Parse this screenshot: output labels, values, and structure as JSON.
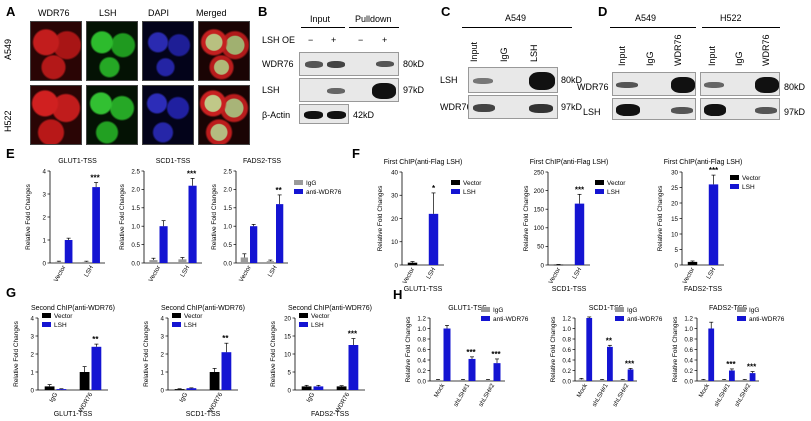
{
  "panels": {
    "A": {
      "label": "A",
      "columns": [
        "WDR76",
        "LSH",
        "DAPI",
        "Merged"
      ],
      "rows": [
        "A549",
        "H522"
      ]
    },
    "B": {
      "label": "B",
      "headers": [
        "Input",
        "Pulldown"
      ],
      "treatment": "LSH OE",
      "signs": [
        "−",
        "+",
        "−",
        "+"
      ],
      "rows": [
        "WDR76",
        "LSH",
        "β-Actin"
      ],
      "sizes": [
        "80kD",
        "97kD",
        "42kD"
      ]
    },
    "C": {
      "label": "C",
      "cell": "A549",
      "lanes": [
        "Input",
        "IgG",
        "LSH"
      ],
      "rows": [
        "LSH",
        "WDR76"
      ],
      "sizes": [
        "80kD",
        "97kD"
      ]
    },
    "D": {
      "label": "D",
      "cells": [
        "A549",
        "H522"
      ],
      "lanes": [
        "Input",
        "IgG",
        "WDR76",
        "Input",
        "IgG",
        "WDR76"
      ],
      "rows": [
        "WDR76",
        "LSH"
      ],
      "sizes": [
        "80kD",
        "97kD"
      ]
    },
    "E": {
      "label": "E"
    },
    "F": {
      "label": "F"
    },
    "G": {
      "label": "G"
    },
    "H": {
      "label": "H"
    }
  },
  "colors": {
    "blue": "#1414d2",
    "gray": "#9a9a9a",
    "black": "#000000"
  },
  "chart_data": [
    {
      "id": "E1",
      "panel": "E",
      "type": "bar",
      "title": "GLUT1-TSS",
      "ylabel": "Relative Fold Changes",
      "categories": [
        "Vector",
        "LSH"
      ],
      "ylim": [
        0,
        4
      ],
      "yticks": [
        "0",
        "1",
        "2",
        "3",
        "4"
      ],
      "series": [
        {
          "name": "IgG",
          "color": "gray",
          "values": [
            0.05,
            0.05
          ],
          "errors": [
            0.03,
            0.03
          ]
        },
        {
          "name": "anti-WDR76",
          "color": "blue",
          "values": [
            1.0,
            3.3
          ],
          "errors": [
            0.08,
            0.2
          ]
        }
      ],
      "sig": [
        "",
        "***"
      ]
    },
    {
      "id": "E2",
      "panel": "E",
      "type": "bar",
      "title": "SCD1-TSS",
      "ylabel": "Relative Fold Changes",
      "categories": [
        "Vector",
        "LSH"
      ],
      "ylim": [
        0,
        2.5
      ],
      "yticks": [
        "0.0",
        "0.5",
        "1.0",
        "1.5",
        "2.0",
        "2.5"
      ],
      "series": [
        {
          "name": "IgG",
          "color": "gray",
          "values": [
            0.08,
            0.1
          ],
          "errors": [
            0.05,
            0.05
          ]
        },
        {
          "name": "anti-WDR76",
          "color": "blue",
          "values": [
            1.0,
            2.1
          ],
          "errors": [
            0.15,
            0.2
          ]
        }
      ],
      "sig": [
        "",
        "***"
      ]
    },
    {
      "id": "E3",
      "panel": "E",
      "type": "bar",
      "title": "FADS2-TSS",
      "ylabel": "Relative Fold Changes",
      "categories": [
        "Vector",
        "LSH"
      ],
      "ylim": [
        0,
        2.5
      ],
      "yticks": [
        "0.0",
        "0.5",
        "1.0",
        "1.5",
        "2.0",
        "2.5"
      ],
      "series": [
        {
          "name": "IgG",
          "color": "gray",
          "values": [
            0.15,
            0.05
          ],
          "errors": [
            0.1,
            0.03
          ]
        },
        {
          "name": "anti-WDR76",
          "color": "blue",
          "values": [
            1.0,
            1.6
          ],
          "errors": [
            0.05,
            0.25
          ]
        }
      ],
      "sig": [
        "",
        "**"
      ],
      "legend": [
        "IgG",
        "anti-WDR76"
      ]
    },
    {
      "id": "F1",
      "panel": "F",
      "type": "bar",
      "title": "First ChIP(anti-Flag LSH)",
      "ylabel": "Relative Fold Changes",
      "xlabel": "GLUT1-TSS",
      "categories": [
        "Vector",
        "LSH"
      ],
      "ylim": [
        0,
        40
      ],
      "yticks": [
        "0",
        "10",
        "20",
        "30",
        "40"
      ],
      "series": [
        {
          "name": "Values",
          "colors": [
            "black",
            "blue"
          ],
          "values": [
            1,
            22
          ],
          "errors": [
            0.5,
            9
          ]
        }
      ],
      "sig": [
        "",
        "*"
      ],
      "legend": [
        "Vector",
        "LSH"
      ]
    },
    {
      "id": "F2",
      "panel": "F",
      "type": "bar",
      "title": "First ChIP(anti-Flag LSH)",
      "ylabel": "Relative Fold Changes",
      "xlabel": "SCD1-TSS",
      "categories": [
        "Vector",
        "LSH"
      ],
      "ylim": [
        0,
        250
      ],
      "yticks": [
        "0",
        "50",
        "100",
        "150",
        "200",
        "250"
      ],
      "series": [
        {
          "name": "Values",
          "colors": [
            "black",
            "blue"
          ],
          "values": [
            1,
            165
          ],
          "errors": [
            0.5,
            25
          ]
        }
      ],
      "sig": [
        "",
        "***"
      ],
      "legend": [
        "Vector",
        "LSH"
      ]
    },
    {
      "id": "F3",
      "panel": "F",
      "type": "bar",
      "title": "First ChIP(anti-Flag LSH)",
      "ylabel": "Relative Fold Changes",
      "xlabel": "FADS2-TSS",
      "categories": [
        "Vector",
        "LSH"
      ],
      "ylim": [
        0,
        30
      ],
      "yticks": [
        "0",
        "5",
        "10",
        "15",
        "20",
        "25",
        "30"
      ],
      "series": [
        {
          "name": "Values",
          "colors": [
            "black",
            "blue"
          ],
          "values": [
            1,
            26
          ],
          "errors": [
            0.3,
            3
          ]
        }
      ],
      "sig": [
        "",
        "***"
      ],
      "legend": [
        "Vector",
        "LSH"
      ]
    },
    {
      "id": "G1",
      "panel": "G",
      "type": "bar",
      "title": "Second ChIP(anti-WDR76)",
      "ylabel": "Relative Fold Changes",
      "xlabel": "GLUT1-TSS",
      "categories": [
        "IgG",
        "WDR76"
      ],
      "ylim": [
        0,
        4
      ],
      "yticks": [
        "0",
        "1",
        "2",
        "3",
        "4"
      ],
      "series": [
        {
          "name": "Vector",
          "color": "black",
          "values": [
            0.2,
            1.0
          ],
          "errors": [
            0.1,
            0.3
          ]
        },
        {
          "name": "LSH",
          "color": "blue",
          "values": [
            0.05,
            2.4
          ],
          "errors": [
            0.02,
            0.15
          ]
        }
      ],
      "sig": [
        "",
        "**"
      ],
      "legend": [
        "Vector",
        "LSH"
      ]
    },
    {
      "id": "G2",
      "panel": "G",
      "type": "bar",
      "title": "Second ChIP(anti-WDR76)",
      "ylabel": "Relative Fold Changes",
      "xlabel": "SCD1-TSS",
      "categories": [
        "IgG",
        "WDR76"
      ],
      "ylim": [
        0,
        4
      ],
      "yticks": [
        "0",
        "1",
        "2",
        "3",
        "4"
      ],
      "series": [
        {
          "name": "Vector",
          "color": "black",
          "values": [
            0.05,
            1.0
          ],
          "errors": [
            0.02,
            0.2
          ]
        },
        {
          "name": "LSH",
          "color": "blue",
          "values": [
            0.1,
            2.1
          ],
          "errors": [
            0.02,
            0.5
          ]
        }
      ],
      "sig": [
        "",
        "**"
      ],
      "legend": [
        "Vector",
        "LSH"
      ]
    },
    {
      "id": "G3",
      "panel": "G",
      "type": "bar",
      "title": "Second ChIP(anti-WDR76)",
      "ylabel": "Relative Fold Changes",
      "xlabel": "FADS2-TSS",
      "categories": [
        "IgG",
        "WDR76"
      ],
      "ylim": [
        0,
        20
      ],
      "yticks": [
        "0",
        "5",
        "10",
        "15",
        "20"
      ],
      "series": [
        {
          "name": "Vector",
          "color": "black",
          "values": [
            1.0,
            1.0
          ],
          "errors": [
            0.3,
            0.2
          ]
        },
        {
          "name": "LSH",
          "color": "blue",
          "values": [
            1.0,
            12.5
          ],
          "errors": [
            0.3,
            1.8
          ]
        }
      ],
      "sig": [
        "",
        "***"
      ],
      "legend": [
        "Vector",
        "LSH"
      ]
    },
    {
      "id": "H1",
      "panel": "H",
      "type": "bar",
      "title": "GLUT1-TSS",
      "ylabel": "Relative Fold Changes",
      "categories": [
        "Mock",
        "shLSH#1",
        "shLSH#2"
      ],
      "ylim": [
        0,
        1.2
      ],
      "yticks": [
        "0.0",
        "0.2",
        "0.4",
        "0.6",
        "0.8",
        "1.0",
        "1.2"
      ],
      "series": [
        {
          "name": "IgG",
          "color": "gray",
          "values": [
            0.02,
            0.02,
            0.02
          ],
          "errors": [
            0.01,
            0.01,
            0.01
          ]
        },
        {
          "name": "anti-WDR76",
          "color": "blue",
          "values": [
            1.0,
            0.42,
            0.34
          ],
          "errors": [
            0.06,
            0.04,
            0.08
          ]
        }
      ],
      "sig": [
        "",
        "***",
        "***"
      ],
      "legend": [
        "IgG",
        "anti-WDR76"
      ]
    },
    {
      "id": "H2",
      "panel": "H",
      "type": "bar",
      "title": "SCD1-TSS",
      "ylabel": "Relative Fold Changes",
      "categories": [
        "Mock",
        "shLSH#1",
        "shLSH#2"
      ],
      "ylim": [
        0,
        1.2
      ],
      "yticks": [
        "0.0",
        "0.2",
        "0.4",
        "0.6",
        "0.8",
        "1.0",
        "1.2"
      ],
      "series": [
        {
          "name": "IgG",
          "color": "gray",
          "values": [
            0.03,
            0.02,
            0.02
          ],
          "errors": [
            0.02,
            0.01,
            0.01
          ]
        },
        {
          "name": "anti-WDR76",
          "color": "blue",
          "values": [
            1.2,
            0.65,
            0.22
          ],
          "errors": [
            0.02,
            0.03,
            0.02
          ]
        }
      ],
      "sig": [
        "",
        "**",
        "***"
      ],
      "legend": [
        "IgG",
        "anti-WDR76"
      ]
    },
    {
      "id": "H3",
      "panel": "H",
      "type": "bar",
      "title": "FADS2-TSS",
      "ylabel": "Relative Fold Changes",
      "categories": [
        "Mock",
        "shLSH#1",
        "shLSH#2"
      ],
      "ylim": [
        0,
        1.2
      ],
      "yticks": [
        "0.0",
        "0.2",
        "0.4",
        "0.6",
        "0.8",
        "1.0",
        "1.2"
      ],
      "series": [
        {
          "name": "IgG",
          "color": "gray",
          "values": [
            0.02,
            0.02,
            0.02
          ],
          "errors": [
            0.01,
            0.01,
            0.01
          ]
        },
        {
          "name": "anti-WDR76",
          "color": "blue",
          "values": [
            1.0,
            0.2,
            0.15
          ],
          "errors": [
            0.12,
            0.03,
            0.03
          ]
        }
      ],
      "sig": [
        "",
        "***",
        "***"
      ],
      "legend": [
        "IgG",
        "anti-WDR76"
      ]
    }
  ]
}
